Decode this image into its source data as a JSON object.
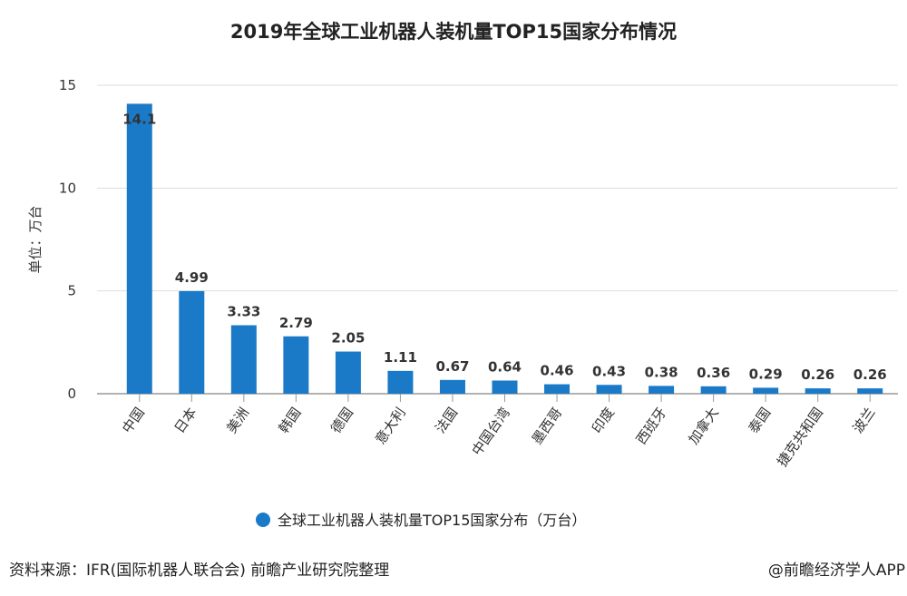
{
  "chart_data": {
    "type": "bar",
    "title": "2019年全球工业机器人装机量TOP15国家分布情况",
    "ylabel": "单位：万台",
    "xlabel": "",
    "ylim": [
      0,
      15
    ],
    "yticks": [
      0,
      5,
      10,
      15
    ],
    "grid": true,
    "legend_placement": "bottom",
    "categories": [
      "中国",
      "日本",
      "美洲",
      "韩国",
      "德国",
      "意大利",
      "法国",
      "中国台湾",
      "墨西哥",
      "印度",
      "西班牙",
      "加拿大",
      "泰国",
      "捷克共和国",
      "波兰"
    ],
    "series": [
      {
        "name": "全球工业机器人装机量TOP15国家分布（万台）",
        "values": [
          14.1,
          4.99,
          3.33,
          2.79,
          2.05,
          1.11,
          0.67,
          0.64,
          0.46,
          0.43,
          0.38,
          0.36,
          0.29,
          0.26,
          0.26
        ],
        "color": "#1a7ac8"
      }
    ]
  },
  "footer": {
    "source": "资料来源：IFR(国际机器人联合会) 前瞻产业研究院整理",
    "credit": "@前瞻经济学人APP"
  }
}
